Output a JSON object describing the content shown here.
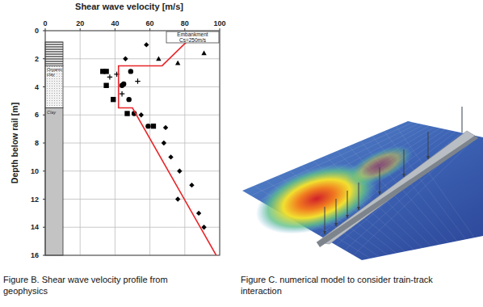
{
  "chart_data": {
    "type": "scatter",
    "title": "Shear wave velocity [m/s]",
    "y_label": "Depth below rail [m]",
    "xlim": [
      0,
      100
    ],
    "xticks": [
      0,
      20,
      40,
      60,
      80,
      100
    ],
    "ylim": [
      0,
      16
    ],
    "yticks": [
      0,
      2,
      4,
      6,
      8,
      10,
      12,
      14,
      16
    ],
    "grid": true,
    "annotations": [
      "Embankment",
      "Cs=250m/s"
    ],
    "soil_layers": [
      {
        "top": 0.8,
        "bottom": 2.5
      },
      {
        "top": 2.5,
        "bottom": 5.5,
        "label": "Organic clay"
      },
      {
        "top": 5.5,
        "bottom": 16,
        "label": "Clay"
      }
    ],
    "series": [
      {
        "marker": "diamond",
        "color": "#000000",
        "x": [
          58,
          46,
          55,
          69,
          68,
          72,
          77,
          84,
          76,
          88,
          91
        ],
        "values": [
          1,
          2,
          6,
          6.9,
          8,
          9,
          10,
          11,
          12,
          13,
          14
        ]
      },
      {
        "marker": "triangle",
        "color": "#000000",
        "x": [
          65,
          76,
          91
        ],
        "values": [
          2,
          2.3,
          1.6
        ]
      },
      {
        "marker": "circle",
        "color": "#000000",
        "x": [
          49,
          45,
          44,
          48,
          51,
          59
        ],
        "values": [
          2.9,
          3.8,
          3.9,
          4.9,
          5.9,
          6.8
        ]
      },
      {
        "marker": "square",
        "color": "#000000",
        "x": [
          33,
          35,
          35,
          39,
          47,
          62
        ],
        "values": [
          2.9,
          2.9,
          3.9,
          4.9,
          5.9,
          6.8
        ]
      },
      {
        "marker": "plus",
        "color": "#000000",
        "x": [
          37,
          53,
          44,
          41
        ],
        "values": [
          3.3,
          3.6,
          4.5,
          3.1
        ]
      },
      {
        "type": "line",
        "color": "#e8262a",
        "x": [
          81,
          67,
          42,
          42,
          50,
          98
        ],
        "values": [
          0.8,
          2.5,
          2.5,
          5.5,
          5.5,
          16
        ]
      }
    ]
  },
  "figure_b": {
    "caption": [
      "Figure B. Shear wave velocity profile from",
      "geophysics"
    ]
  },
  "figure_c": {
    "caption": [
      "Figure C. numerical model to consider train-track",
      "interaction"
    ]
  }
}
